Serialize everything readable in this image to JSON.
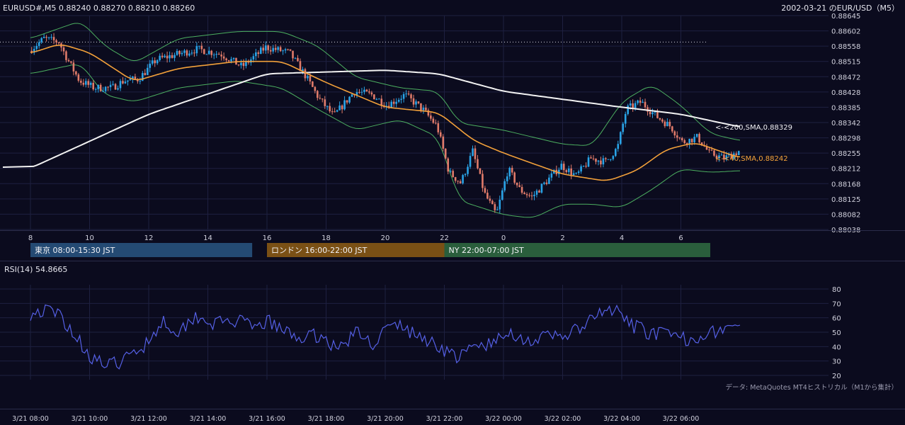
{
  "header": {
    "symbol_info": "EURUSD#,M5 0.88240 0.88270 0.88210 0.88260",
    "right_title": "2002-03-21 のEUR/USD（M5）"
  },
  "sessions": [
    {
      "label": "東京 08:00-15:30 JST",
      "start": 0,
      "end": 7.5,
      "color": "#244a73"
    },
    {
      "label": "ロンドン 16:00-22:00 JST",
      "start": 8,
      "end": 14,
      "color": "#7a5015"
    },
    {
      "label": "NY 22:00-07:00 JST",
      "start": 14,
      "end": 23,
      "color": "#2a5e3c"
    }
  ],
  "indicators": {
    "sma200_label": "<-<200,SMA,0.88329",
    "sma40_label": "<-<40,SMA,0.88242",
    "rsi_label": "RSI(14) 54.8665"
  },
  "footer": {
    "data_note": "データ: MetaQuotes MT4ヒストリカル（M1から集計）"
  },
  "colors": {
    "bull": "#29a3e6",
    "bear": "#e07b6a",
    "sma200": "#f2f2f2",
    "sma40": "#f2a03a",
    "bands": "#4caf60",
    "rsi": "#5560e6",
    "grid": "#1e2040",
    "background": "#0b0b1e"
  },
  "chart_data": [
    {
      "type": "candlestick",
      "title": "EUR/USD M5",
      "x_hours": [
        "8",
        "10",
        "12",
        "14",
        "16",
        "18",
        "20",
        "22",
        "0",
        "2",
        "4",
        "6"
      ],
      "x_times": [
        "3/21 08:00",
        "3/21 10:00",
        "3/21 12:00",
        "3/21 14:00",
        "3/21 16:00",
        "3/21 18:00",
        "3/21 20:00",
        "3/21 22:00",
        "3/22 00:00",
        "3/22 02:00",
        "3/22 04:00",
        "3/22 06:00"
      ],
      "y_ticks": [
        "0.88645",
        "0.88602",
        "0.88558",
        "0.88515",
        "0.88472",
        "0.88428",
        "0.88385",
        "0.88342",
        "0.88298",
        "0.88255",
        "0.88212",
        "0.88168",
        "0.88125",
        "0.88082",
        "0.88038"
      ],
      "ylim": [
        0.88038,
        0.88645
      ],
      "reference_line": 0.8857,
      "price_path": [
        [
          0,
          0.88545
        ],
        [
          0.5,
          0.8858
        ],
        [
          1,
          0.8857
        ],
        [
          1.3,
          0.8852
        ],
        [
          1.7,
          0.8846
        ],
        [
          2.2,
          0.8844
        ],
        [
          2.8,
          0.8844
        ],
        [
          3.2,
          0.8846
        ],
        [
          3.7,
          0.88465
        ],
        [
          4.3,
          0.8852
        ],
        [
          5,
          0.88535
        ],
        [
          5.7,
          0.8855
        ],
        [
          6.5,
          0.88535
        ],
        [
          7.2,
          0.885
        ],
        [
          8,
          0.88555
        ],
        [
          8.8,
          0.8854
        ],
        [
          9.3,
          0.8848
        ],
        [
          9.8,
          0.8841
        ],
        [
          10.3,
          0.8836
        ],
        [
          11,
          0.8843
        ],
        [
          11.6,
          0.8842
        ],
        [
          12.1,
          0.8839
        ],
        [
          12.7,
          0.8842
        ],
        [
          13.3,
          0.8838
        ],
        [
          13.8,
          0.8833
        ],
        [
          14.2,
          0.882
        ],
        [
          14.6,
          0.8817
        ],
        [
          15,
          0.8826
        ],
        [
          15.4,
          0.8814
        ],
        [
          15.8,
          0.8808
        ],
        [
          16.2,
          0.8821
        ],
        [
          16.6,
          0.8815
        ],
        [
          17,
          0.8813
        ],
        [
          17.5,
          0.88175
        ],
        [
          18,
          0.8822
        ],
        [
          18.5,
          0.8819
        ],
        [
          19,
          0.8824
        ],
        [
          19.5,
          0.8823
        ],
        [
          19.9,
          0.8827
        ],
        [
          20.2,
          0.8838
        ],
        [
          20.7,
          0.884
        ],
        [
          21.2,
          0.8836
        ],
        [
          21.7,
          0.8833
        ],
        [
          22.1,
          0.88285
        ],
        [
          22.6,
          0.883
        ],
        [
          23,
          0.88255
        ],
        [
          23.5,
          0.8824
        ],
        [
          24,
          0.8826
        ]
      ],
      "sma200": [
        [
          0,
          0.88212
        ],
        [
          4,
          0.88365
        ],
        [
          8,
          0.8848
        ],
        [
          12,
          0.8849
        ],
        [
          13.8,
          0.8848
        ],
        [
          16,
          0.8843
        ],
        [
          20,
          0.88385
        ],
        [
          22,
          0.88365
        ],
        [
          24,
          0.88329
        ]
      ],
      "sma40": [
        [
          0,
          0.88538
        ],
        [
          1,
          0.88565
        ],
        [
          2,
          0.8854
        ],
        [
          3.5,
          0.88458
        ],
        [
          5,
          0.88495
        ],
        [
          7,
          0.88515
        ],
        [
          8.5,
          0.88515
        ],
        [
          10,
          0.88455
        ],
        [
          12,
          0.88385
        ],
        [
          13.8,
          0.8837
        ],
        [
          15,
          0.8829
        ],
        [
          16,
          0.88255
        ],
        [
          18,
          0.88195
        ],
        [
          19.5,
          0.88175
        ],
        [
          20.5,
          0.88205
        ],
        [
          21.5,
          0.88265
        ],
        [
          22.5,
          0.88285
        ],
        [
          23.5,
          0.88255
        ],
        [
          24,
          0.88242
        ]
      ],
      "bollinger_upper": [
        [
          0,
          0.8858
        ],
        [
          1.7,
          0.8863
        ],
        [
          2.5,
          0.8856
        ],
        [
          3.5,
          0.8851
        ],
        [
          5,
          0.8858
        ],
        [
          7,
          0.886
        ],
        [
          8.5,
          0.886
        ],
        [
          9.7,
          0.8856
        ],
        [
          11,
          0.8847
        ],
        [
          12.5,
          0.8844
        ],
        [
          13.8,
          0.8843
        ],
        [
          14.5,
          0.8834
        ],
        [
          16,
          0.8832
        ],
        [
          17,
          0.883
        ],
        [
          18,
          0.8828
        ],
        [
          19,
          0.88275
        ],
        [
          20,
          0.884
        ],
        [
          21,
          0.8845
        ],
        [
          22,
          0.8839
        ],
        [
          23,
          0.8831
        ],
        [
          24,
          0.8829
        ]
      ],
      "bollinger_lower": [
        [
          0,
          0.8848
        ],
        [
          1.7,
          0.8851
        ],
        [
          2.5,
          0.8842
        ],
        [
          3.5,
          0.884
        ],
        [
          5,
          0.8844
        ],
        [
          7,
          0.8846
        ],
        [
          8.5,
          0.8844
        ],
        [
          9.7,
          0.8838
        ],
        [
          11,
          0.8832
        ],
        [
          12.5,
          0.8835
        ],
        [
          13.8,
          0.883
        ],
        [
          14.5,
          0.8812
        ],
        [
          16,
          0.8808
        ],
        [
          17,
          0.8807
        ],
        [
          18,
          0.8811
        ],
        [
          19,
          0.8811
        ],
        [
          20,
          0.881
        ],
        [
          21,
          0.8815
        ],
        [
          22,
          0.8821
        ],
        [
          23,
          0.882
        ],
        [
          24,
          0.88205
        ]
      ]
    },
    {
      "type": "line",
      "title": "RSI(14)",
      "y_ticks": [
        "80",
        "70",
        "60",
        "50",
        "40",
        "30",
        "20"
      ],
      "ylim": [
        20,
        80
      ],
      "series": [
        {
          "name": "RSI(14)",
          "points": [
            [
              0,
              63
            ],
            [
              0.5,
              65
            ],
            [
              1,
              62
            ],
            [
              1.5,
              48
            ],
            [
              2,
              34
            ],
            [
              2.6,
              26
            ],
            [
              3.2,
              31
            ],
            [
              3.8,
              40
            ],
            [
              4.5,
              58
            ],
            [
              5,
              50
            ],
            [
              5.6,
              62
            ],
            [
              6.2,
              56
            ],
            [
              7,
              58
            ],
            [
              7.6,
              52
            ],
            [
              8,
              58
            ],
            [
              8.6,
              50
            ],
            [
              9.2,
              46
            ],
            [
              9.8,
              48
            ],
            [
              10.4,
              38
            ],
            [
              11,
              50
            ],
            [
              11.6,
              42
            ],
            [
              12,
              52
            ],
            [
              12.5,
              55
            ],
            [
              13,
              48
            ],
            [
              13.5,
              44
            ],
            [
              14,
              38
            ],
            [
              14.5,
              32
            ],
            [
              15,
              40
            ],
            [
              15.6,
              42
            ],
            [
              16.3,
              50
            ],
            [
              16.8,
              44
            ],
            [
              17.4,
              46
            ],
            [
              18,
              48
            ],
            [
              18.6,
              52
            ],
            [
              19.2,
              62
            ],
            [
              19.7,
              66
            ],
            [
              20.3,
              55
            ],
            [
              20.9,
              50
            ],
            [
              21.5,
              48
            ],
            [
              22.2,
              45
            ],
            [
              22.8,
              49
            ],
            [
              23.4,
              52
            ],
            [
              24,
              54.8665
            ]
          ]
        }
      ]
    }
  ]
}
